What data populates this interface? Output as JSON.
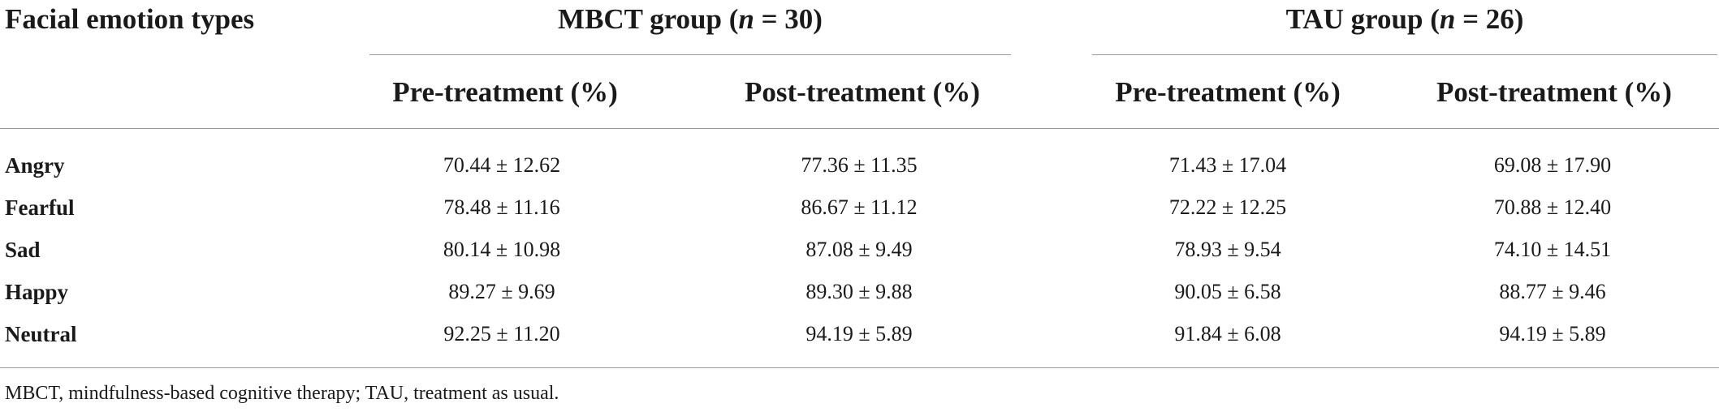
{
  "table": {
    "corner_header": "Facial emotion types",
    "groups": [
      {
        "label": "MBCT group (",
        "n_label": "n",
        "n_value": " = 30)"
      },
      {
        "label": "TAU group (",
        "n_label": "n",
        "n_value": " = 26)"
      }
    ],
    "subheaders": [
      "Pre-treatment (%)",
      "Post-treatment (%)",
      "Pre-treatment (%)",
      "Post-treatment (%)"
    ],
    "rows": [
      {
        "label": "Angry",
        "cells": [
          "70.44 ± 12.62",
          "77.36 ± 11.35",
          "71.43 ± 17.04",
          "69.08 ± 17.90"
        ]
      },
      {
        "label": "Fearful",
        "cells": [
          "78.48 ± 11.16",
          "86.67 ± 11.12",
          "72.22 ± 12.25",
          "70.88 ± 12.40"
        ]
      },
      {
        "label": "Sad",
        "cells": [
          "80.14 ± 10.98",
          "87.08 ± 9.49",
          "78.93 ± 9.54",
          "74.10 ± 14.51"
        ]
      },
      {
        "label": "Happy",
        "cells": [
          "89.27 ± 9.69",
          "89.30 ± 9.88",
          "90.05 ± 6.58",
          "88.77 ± 9.46"
        ]
      },
      {
        "label": "Neutral",
        "cells": [
          "92.25 ± 11.20",
          "94.19 ± 5.89",
          "91.84 ± 6.08",
          "94.19 ± 5.89"
        ]
      }
    ],
    "footnote": "MBCT, mindfulness-based cognitive therapy; TAU, treatment as usual."
  }
}
